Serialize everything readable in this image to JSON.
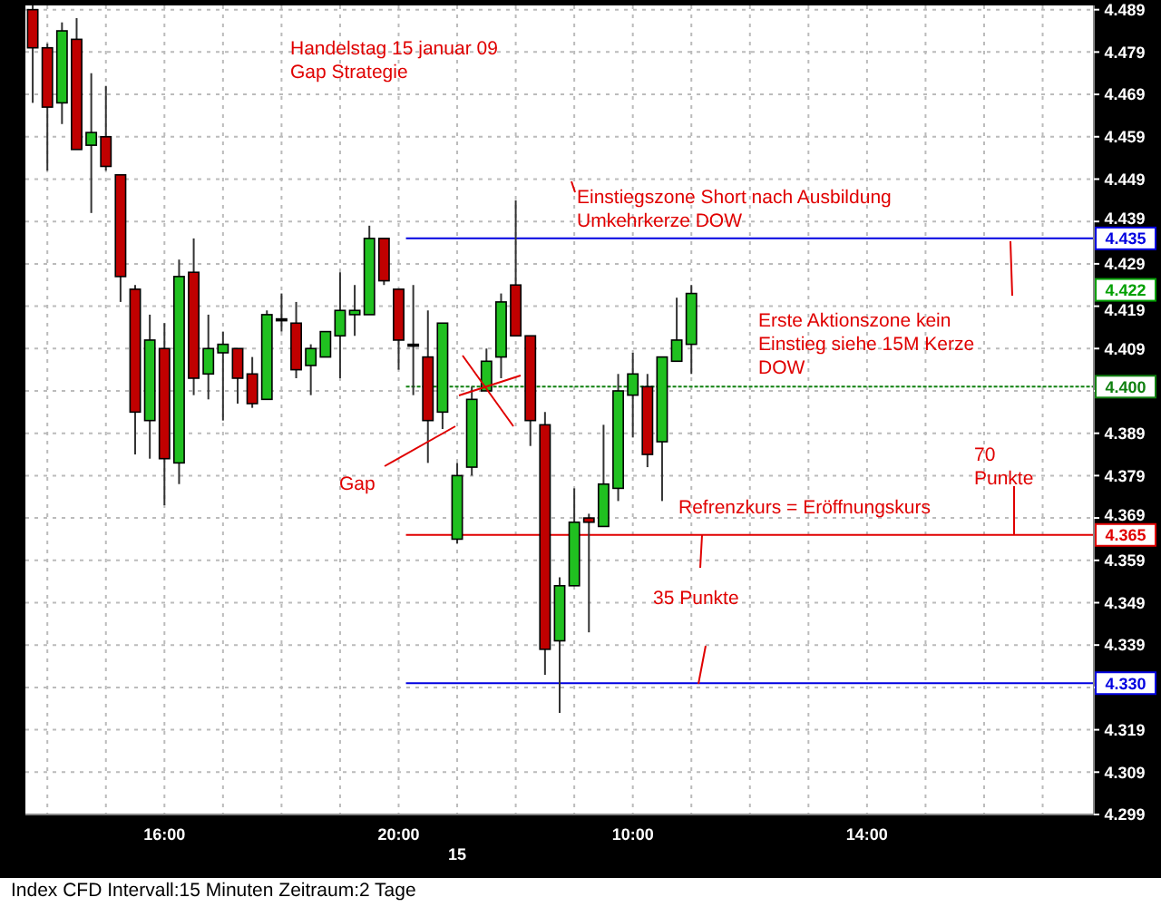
{
  "chart_data": {
    "type": "candlestick",
    "categories": [
      null,
      null,
      null,
      null,
      null,
      null,
      null,
      null,
      null,
      "16:00",
      null,
      null,
      null,
      null,
      null,
      null,
      null,
      null,
      null,
      null,
      null,
      null,
      null,
      null,
      null,
      "20:00",
      null,
      null,
      null,
      "15",
      null,
      null,
      null,
      null,
      null,
      null,
      null,
      null,
      null,
      null,
      null,
      "10:00",
      null,
      null,
      null,
      null,
      null,
      null,
      null,
      null,
      null,
      null,
      null,
      null,
      null,
      null,
      null,
      "14:00",
      null,
      null,
      null,
      null,
      null,
      null,
      null,
      null,
      null,
      null,
      null,
      null,
      null,
      null,
      null
    ],
    "ohlc": [
      [
        4.489,
        4.49,
        4.467,
        4.48
      ],
      [
        4.48,
        4.481,
        4.451,
        4.466
      ],
      [
        4.467,
        4.486,
        4.462,
        4.484
      ],
      [
        4.482,
        4.487,
        4.456,
        4.456
      ],
      [
        4.457,
        4.474,
        4.441,
        4.46
      ],
      [
        4.459,
        4.471,
        4.451,
        4.452
      ],
      [
        4.45,
        4.45,
        4.42,
        4.426
      ],
      [
        4.423,
        4.424,
        4.384,
        4.394
      ],
      [
        4.392,
        4.417,
        4.383,
        4.411
      ],
      [
        4.409,
        4.415,
        4.372,
        4.383
      ],
      [
        4.382,
        4.43,
        4.377,
        4.426
      ],
      [
        4.427,
        4.435,
        4.398,
        4.402
      ],
      [
        4.403,
        4.417,
        4.397,
        4.409
      ],
      [
        4.408,
        4.413,
        4.392,
        4.41
      ],
      [
        4.409,
        4.409,
        4.396,
        4.402
      ],
      [
        4.403,
        4.407,
        4.395,
        4.396
      ],
      [
        4.397,
        4.418,
        4.397,
        4.417
      ],
      [
        4.416,
        4.422,
        4.413,
        4.416
      ],
      [
        4.415,
        4.42,
        4.402,
        4.404
      ],
      [
        4.405,
        4.41,
        4.398,
        4.409
      ],
      [
        4.407,
        4.413,
        4.407,
        4.413
      ],
      [
        4.412,
        4.427,
        4.402,
        4.418
      ],
      [
        4.417,
        4.424,
        4.412,
        4.418
      ],
      [
        4.417,
        4.438,
        4.417,
        4.435
      ],
      [
        4.435,
        4.435,
        4.424,
        4.425
      ],
      [
        4.423,
        4.423,
        4.404,
        4.411
      ],
      [
        4.41,
        4.424,
        4.398,
        4.41
      ],
      [
        4.407,
        4.418,
        4.382,
        4.392
      ],
      [
        4.394,
        4.415,
        4.39,
        4.415
      ],
      [
        4.364,
        4.382,
        4.363,
        4.379
      ],
      [
        4.381,
        4.4,
        4.379,
        4.397
      ],
      [
        4.399,
        4.409,
        4.399,
        4.406
      ],
      [
        4.407,
        4.422,
        4.402,
        4.42
      ],
      [
        4.424,
        4.444,
        4.412,
        4.412
      ],
      [
        4.412,
        4.412,
        4.386,
        4.392
      ],
      [
        4.391,
        4.394,
        4.332,
        4.338
      ],
      [
        4.34,
        4.355,
        4.323,
        4.353
      ],
      [
        4.353,
        4.376,
        4.353,
        4.368
      ],
      [
        4.369,
        4.37,
        4.342,
        4.368
      ],
      [
        4.367,
        4.391,
        4.367,
        4.377
      ],
      [
        4.376,
        4.403,
        4.373,
        4.399
      ],
      [
        4.398,
        4.408,
        4.388,
        4.403
      ],
      [
        4.4,
        4.403,
        4.381,
        4.384
      ],
      [
        4.387,
        4.407,
        4.373,
        4.407
      ],
      [
        4.406,
        4.421,
        4.406,
        4.411
      ],
      [
        4.41,
        4.424,
        4.403,
        4.422
      ],
      null,
      null,
      null,
      null,
      null,
      null,
      null,
      null,
      null,
      null,
      null,
      null,
      null,
      null,
      null,
      null,
      null,
      null,
      null,
      null,
      null,
      null,
      null,
      null,
      null,
      null,
      null
    ],
    "colors": [
      "#c00000",
      "#c00000",
      "#20c020",
      "#c00000",
      "#20c020",
      "#c00000",
      "#c00000",
      "#c00000",
      "#20c020",
      "#c00000",
      "#20c020",
      "#c00000",
      "#20c020",
      "#20c020",
      "#c00000",
      "#c00000",
      "#20c020",
      "#000000",
      "#c00000",
      "#20c020",
      "#20c020",
      "#20c020",
      "#20c020",
      "#20c020",
      "#c00000",
      "#c00000",
      "#000000",
      "#c00000",
      "#20c020",
      "#20c020",
      "#20c020",
      "#20c020",
      "#20c020",
      "#c00000",
      "#c00000",
      "#c00000",
      "#20c020",
      "#20c020",
      "#c00000",
      "#20c020",
      "#20c020",
      "#20c020",
      "#c00000",
      "#20c020",
      "#20c020",
      "#20c020",
      null,
      null,
      null,
      null,
      null,
      null,
      null,
      null,
      null,
      null,
      null,
      null,
      null,
      null,
      null,
      null,
      null,
      null,
      null,
      null,
      null,
      null,
      null,
      null,
      null,
      null,
      null
    ],
    "ylim": [
      4.299,
      4.49
    ],
    "yticks": [
      4.489,
      4.479,
      4.469,
      4.459,
      4.449,
      4.439,
      4.429,
      4.419,
      4.409,
      {
        "value": 4.399,
        "label": null
      },
      4.389,
      4.379,
      4.369,
      4.359,
      4.349,
      4.339,
      {
        "value": 4.329,
        "label": null
      },
      4.319,
      4.309,
      4.299
    ],
    "grid": true,
    "ref_lines": [
      {
        "axis": "y",
        "value": 4.435,
        "label": "4.435",
        "color": "#0000e0"
      },
      {
        "axis": "y",
        "value": 4.4,
        "label": "4.400",
        "color": "#108010",
        "line_style": "dotted"
      },
      {
        "axis": "y",
        "value": 4.365,
        "label": "4.365",
        "color": "#e00000"
      },
      {
        "axis": "y",
        "value": 4.33,
        "label": "4.330",
        "color": "#0000e0"
      }
    ],
    "annotations": [
      "Handelstag 15 januar 09\nGap Strategie",
      "Einstiegszone Short nach Ausbildung\nUmkehrkerze DOW",
      "Erste Aktionszone kein\nEinstieg siehe 15M Kerze\nDOW",
      "Gap",
      {
        "text": "70\nPunkte",
        "y": 4.365
      },
      "Refrenzkurs = Eröffnungskurs",
      "35 Punkte",
      "4.422",
      "Index CFD   Intervall:15 Minuten   Zeitraum:2 Tage"
    ]
  }
}
